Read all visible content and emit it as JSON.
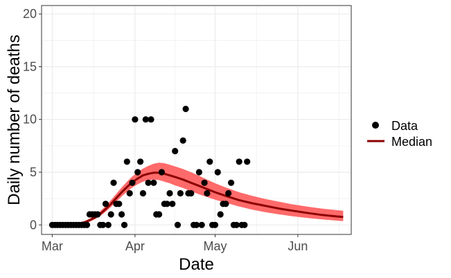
{
  "chart_data": {
    "type": "scatter",
    "title": "",
    "xlabel": "Date",
    "ylabel": "Daily number of deaths",
    "x_type": "date",
    "xlim": [
      "2020-02-26",
      "2020-06-21"
    ],
    "ylim": [
      -0.9,
      20.8
    ],
    "x_ticks": [
      {
        "date": "2020-03-01",
        "label": "Mar"
      },
      {
        "date": "2020-04-01",
        "label": "Apr"
      },
      {
        "date": "2020-05-01",
        "label": "May"
      },
      {
        "date": "2020-06-01",
        "label": "Jun"
      }
    ],
    "y_ticks": [
      {
        "value": 0,
        "label": "0"
      },
      {
        "value": 5,
        "label": "5"
      },
      {
        "value": 10,
        "label": "10"
      },
      {
        "value": 15,
        "label": "15"
      },
      {
        "value": 20,
        "label": "20"
      }
    ],
    "grid": true,
    "legend": {
      "position": "right",
      "entries": [
        {
          "label": "Data",
          "symbol": "point"
        },
        {
          "label": "Median",
          "symbol": "line"
        }
      ]
    },
    "colors": {
      "data": "#000000",
      "median": "#8b0000",
      "band": "#ff6a6a",
      "grid": "#ebebeb",
      "border": "#333333"
    },
    "series": [
      {
        "name": "Data",
        "kind": "points",
        "points": [
          [
            "2020-03-01",
            0
          ],
          [
            "2020-03-02",
            0
          ],
          [
            "2020-03-03",
            0
          ],
          [
            "2020-03-04",
            0
          ],
          [
            "2020-03-05",
            0
          ],
          [
            "2020-03-06",
            0
          ],
          [
            "2020-03-07",
            0
          ],
          [
            "2020-03-08",
            0
          ],
          [
            "2020-03-09",
            0
          ],
          [
            "2020-03-10",
            0
          ],
          [
            "2020-03-11",
            0
          ],
          [
            "2020-03-12",
            0
          ],
          [
            "2020-03-13",
            0
          ],
          [
            "2020-03-14",
            0
          ],
          [
            "2020-03-15",
            1
          ],
          [
            "2020-03-16",
            1
          ],
          [
            "2020-03-17",
            1
          ],
          [
            "2020-03-18",
            1
          ],
          [
            "2020-03-19",
            0
          ],
          [
            "2020-03-20",
            0
          ],
          [
            "2020-03-21",
            2
          ],
          [
            "2020-03-22",
            0
          ],
          [
            "2020-03-23",
            1
          ],
          [
            "2020-03-24",
            4
          ],
          [
            "2020-03-25",
            2
          ],
          [
            "2020-03-26",
            2
          ],
          [
            "2020-03-27",
            1
          ],
          [
            "2020-03-28",
            0
          ],
          [
            "2020-03-29",
            6
          ],
          [
            "2020-03-30",
            3
          ],
          [
            "2020-03-31",
            4
          ],
          [
            "2020-04-01",
            10
          ],
          [
            "2020-04-02",
            5
          ],
          [
            "2020-04-03",
            6
          ],
          [
            "2020-04-04",
            3
          ],
          [
            "2020-04-05",
            10
          ],
          [
            "2020-04-06",
            4
          ],
          [
            "2020-04-07",
            10
          ],
          [
            "2020-04-08",
            4
          ],
          [
            "2020-04-09",
            1
          ],
          [
            "2020-04-10",
            1
          ],
          [
            "2020-04-11",
            5
          ],
          [
            "2020-04-12",
            2
          ],
          [
            "2020-04-13",
            2
          ],
          [
            "2020-04-14",
            3
          ],
          [
            "2020-04-15",
            2
          ],
          [
            "2020-04-16",
            7
          ],
          [
            "2020-04-17",
            0
          ],
          [
            "2020-04-18",
            3
          ],
          [
            "2020-04-19",
            8
          ],
          [
            "2020-04-20",
            11
          ],
          [
            "2020-04-21",
            3
          ],
          [
            "2020-04-22",
            3
          ],
          [
            "2020-04-23",
            0
          ],
          [
            "2020-04-24",
            0
          ],
          [
            "2020-04-25",
            5
          ],
          [
            "2020-04-26",
            0
          ],
          [
            "2020-04-27",
            4
          ],
          [
            "2020-04-28",
            3
          ],
          [
            "2020-04-29",
            6
          ],
          [
            "2020-04-30",
            0
          ],
          [
            "2020-05-01",
            0
          ],
          [
            "2020-05-02",
            5
          ],
          [
            "2020-05-03",
            1
          ],
          [
            "2020-05-04",
            2
          ],
          [
            "2020-05-05",
            2
          ],
          [
            "2020-05-06",
            3
          ],
          [
            "2020-05-07",
            4
          ],
          [
            "2020-05-08",
            0
          ],
          [
            "2020-05-09",
            0
          ],
          [
            "2020-05-10",
            6
          ],
          [
            "2020-05-11",
            0
          ],
          [
            "2020-05-12",
            0
          ],
          [
            "2020-05-13",
            6
          ]
        ]
      },
      {
        "name": "Median",
        "kind": "line",
        "points": [
          [
            "2020-03-01",
            0
          ],
          [
            "2020-03-05",
            0.02
          ],
          [
            "2020-03-10",
            0.1
          ],
          [
            "2020-03-13",
            0.25
          ],
          [
            "2020-03-15",
            0.45
          ],
          [
            "2020-03-17",
            0.7
          ],
          [
            "2020-03-19",
            1.05
          ],
          [
            "2020-03-21",
            1.5
          ],
          [
            "2020-03-23",
            2.0
          ],
          [
            "2020-03-25",
            2.55
          ],
          [
            "2020-03-27",
            3.1
          ],
          [
            "2020-03-29",
            3.6
          ],
          [
            "2020-03-31",
            4.05
          ],
          [
            "2020-04-02",
            4.4
          ],
          [
            "2020-04-04",
            4.7
          ],
          [
            "2020-04-06",
            4.85
          ],
          [
            "2020-04-08",
            4.95
          ],
          [
            "2020-04-10",
            4.95
          ],
          [
            "2020-04-12",
            4.85
          ],
          [
            "2020-04-14",
            4.7
          ],
          [
            "2020-04-16",
            4.55
          ],
          [
            "2020-04-19",
            4.3
          ],
          [
            "2020-04-22",
            4.0
          ],
          [
            "2020-04-25",
            3.7
          ],
          [
            "2020-04-28",
            3.4
          ],
          [
            "2020-05-01",
            3.1
          ],
          [
            "2020-05-05",
            2.75
          ],
          [
            "2020-05-10",
            2.35
          ],
          [
            "2020-05-15",
            2.05
          ],
          [
            "2020-05-20",
            1.8
          ],
          [
            "2020-05-25",
            1.55
          ],
          [
            "2020-05-30",
            1.35
          ],
          [
            "2020-06-05",
            1.12
          ],
          [
            "2020-06-10",
            0.95
          ],
          [
            "2020-06-15",
            0.82
          ],
          [
            "2020-06-18",
            0.75
          ]
        ]
      },
      {
        "name": "",
        "kind": "band",
        "points": [
          [
            "2020-03-01",
            0,
            0
          ],
          [
            "2020-03-05",
            0,
            0.05
          ],
          [
            "2020-03-10",
            0.05,
            0.15
          ],
          [
            "2020-03-13",
            0.15,
            0.35
          ],
          [
            "2020-03-15",
            0.3,
            0.6
          ],
          [
            "2020-03-17",
            0.55,
            0.9
          ],
          [
            "2020-03-19",
            0.85,
            1.3
          ],
          [
            "2020-03-21",
            1.25,
            1.8
          ],
          [
            "2020-03-23",
            1.7,
            2.35
          ],
          [
            "2020-03-25",
            2.2,
            2.95
          ],
          [
            "2020-03-27",
            2.7,
            3.55
          ],
          [
            "2020-03-29",
            3.15,
            4.1
          ],
          [
            "2020-03-31",
            3.55,
            4.6
          ],
          [
            "2020-04-02",
            3.85,
            5.0
          ],
          [
            "2020-04-04",
            4.1,
            5.35
          ],
          [
            "2020-04-06",
            4.25,
            5.6
          ],
          [
            "2020-04-08",
            4.3,
            5.8
          ],
          [
            "2020-04-10",
            4.25,
            5.9
          ],
          [
            "2020-04-12",
            4.1,
            5.85
          ],
          [
            "2020-04-14",
            3.95,
            5.7
          ],
          [
            "2020-04-16",
            3.75,
            5.55
          ],
          [
            "2020-04-19",
            3.5,
            5.3
          ],
          [
            "2020-04-22",
            3.2,
            5.0
          ],
          [
            "2020-04-25",
            2.9,
            4.65
          ],
          [
            "2020-04-28",
            2.65,
            4.3
          ],
          [
            "2020-05-01",
            2.4,
            3.95
          ],
          [
            "2020-05-05",
            2.1,
            3.55
          ],
          [
            "2020-05-10",
            1.75,
            3.1
          ],
          [
            "2020-05-15",
            1.45,
            2.75
          ],
          [
            "2020-05-20",
            1.2,
            2.45
          ],
          [
            "2020-05-25",
            1.0,
            2.2
          ],
          [
            "2020-05-30",
            0.82,
            1.95
          ],
          [
            "2020-06-05",
            0.65,
            1.72
          ],
          [
            "2020-06-10",
            0.52,
            1.55
          ],
          [
            "2020-06-15",
            0.42,
            1.42
          ],
          [
            "2020-06-18",
            0.36,
            1.35
          ]
        ]
      }
    ]
  }
}
